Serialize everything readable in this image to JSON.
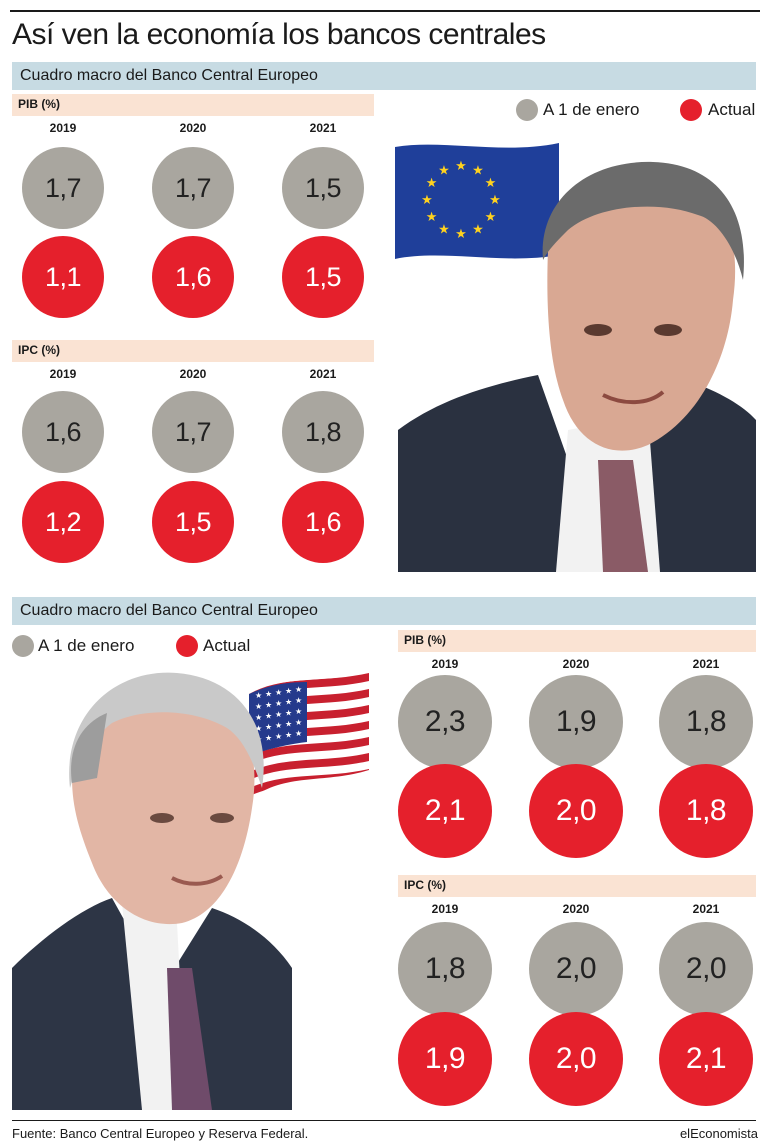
{
  "title": "Así ven la economía los bancos centrales",
  "legend": {
    "initial": "A 1 de enero",
    "actual": "Actual"
  },
  "colors": {
    "initial": "#a9a69f",
    "actual": "#e5202c",
    "section_bar": "#c7dbe3",
    "sub_bar": "#fae3d3"
  },
  "footer": {
    "source": "Fuente: Banco Central Europeo y Reserva Federal.",
    "brand": "elEconomista"
  },
  "chart_data": [
    {
      "type": "bubble-grid",
      "section_title": "Cuadro macro del Banco Central Europeo",
      "panels": [
        {
          "label": "PIB (%)",
          "years": [
            "2019",
            "2020",
            "2021"
          ],
          "series": [
            {
              "name": "A 1 de enero",
              "values": [
                "1,7",
                "1,7",
                "1,5"
              ]
            },
            {
              "name": "Actual",
              "values": [
                "1,1",
                "1,6",
                "1,5"
              ]
            }
          ]
        },
        {
          "label": "IPC (%)",
          "years": [
            "2019",
            "2020",
            "2021"
          ],
          "series": [
            {
              "name": "A 1 de enero",
              "values": [
                "1,6",
                "1,7",
                "1,8"
              ]
            },
            {
              "name": "Actual",
              "values": [
                "1,2",
                "1,5",
                "1,6"
              ]
            }
          ]
        }
      ]
    },
    {
      "type": "bubble-grid",
      "section_title": "Cuadro macro del Banco Central Europeo",
      "panels": [
        {
          "label": "PIB (%)",
          "years": [
            "2019",
            "2020",
            "2021"
          ],
          "series": [
            {
              "name": "A 1 de enero",
              "values": [
                "2,3",
                "1,9",
                "1,8"
              ]
            },
            {
              "name": "Actual",
              "values": [
                "2,1",
                "2,0",
                "1,8"
              ]
            }
          ]
        },
        {
          "label": "IPC (%)",
          "years": [
            "2019",
            "2020",
            "2021"
          ],
          "series": [
            {
              "name": "A 1 de enero",
              "values": [
                "1,8",
                "2,0",
                "2,0"
              ]
            },
            {
              "name": "Actual",
              "values": [
                "1,9",
                "2,0",
                "2,1"
              ]
            }
          ]
        }
      ]
    }
  ]
}
